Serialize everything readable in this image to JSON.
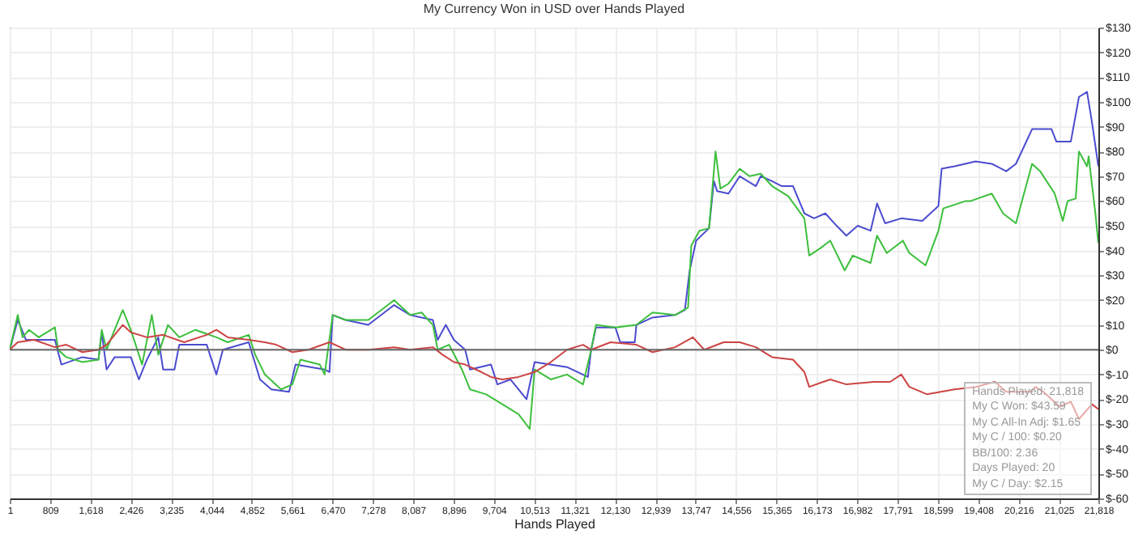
{
  "chart_data": {
    "type": "line",
    "title": "My Currency Won in USD over Hands Played",
    "xlabel": "Hands Played",
    "xlim": [
      1,
      21818
    ],
    "xticks": [
      1,
      {
        "value": 809,
        "label": "809"
      },
      {
        "value": 1618,
        "label": "1,618"
      },
      {
        "value": 2426,
        "label": "2,426"
      },
      {
        "value": 3235,
        "label": "3,235"
      },
      {
        "value": 4044,
        "label": "4,044"
      },
      {
        "value": 4852,
        "label": "4,852"
      },
      {
        "value": 5661,
        "label": "5,661"
      },
      {
        "value": 6470,
        "label": "6,470"
      },
      {
        "value": 7278,
        "label": "7,278"
      },
      {
        "value": 8087,
        "label": "8,087"
      },
      {
        "value": 8896,
        "label": "8,896"
      },
      {
        "value": 9704,
        "label": "9,704"
      },
      {
        "value": 10513,
        "label": "10,513"
      },
      {
        "value": 11321,
        "label": "11,321"
      },
      {
        "value": 12130,
        "label": "12,130"
      },
      {
        "value": 12939,
        "label": "12,939"
      },
      {
        "value": 13747,
        "label": "13,747"
      },
      {
        "value": 14556,
        "label": "14,556"
      },
      {
        "value": 15365,
        "label": "15,365"
      },
      {
        "value": 16173,
        "label": "16,173"
      },
      {
        "value": 16982,
        "label": "16,982"
      },
      {
        "value": 17791,
        "label": "17,791"
      },
      {
        "value": 18599,
        "label": "18,599"
      },
      {
        "value": 19408,
        "label": "19,408"
      },
      {
        "value": 20216,
        "label": "20,216"
      },
      {
        "value": 21025,
        "label": "21,025"
      },
      {
        "value": 21818,
        "label": "21,818"
      }
    ],
    "ylim": [
      -60,
      130
    ],
    "yticks": [
      {
        "value": -60,
        "label": "$-60"
      },
      {
        "value": -50,
        "label": "$-50"
      },
      {
        "value": -40,
        "label": "$-40"
      },
      {
        "value": -30,
        "label": "$-30"
      },
      {
        "value": -20,
        "label": "$-20"
      },
      {
        "value": -10,
        "label": "$-10"
      },
      {
        "value": 0,
        "label": "$0"
      },
      {
        "value": 10,
        "label": "$10"
      },
      {
        "value": 20,
        "label": "$20"
      },
      {
        "value": 30,
        "label": "$30"
      },
      {
        "value": 40,
        "label": "$40"
      },
      {
        "value": 50,
        "label": "$50"
      },
      {
        "value": 60,
        "label": "$60"
      },
      {
        "value": 70,
        "label": "$70"
      },
      {
        "value": 80,
        "label": "$80"
      },
      {
        "value": 90,
        "label": "$90"
      },
      {
        "value": 100,
        "label": "$100"
      },
      {
        "value": 110,
        "label": "$110"
      },
      {
        "value": 120,
        "label": "$120"
      },
      {
        "value": 130,
        "label": "$130"
      }
    ],
    "grid": true,
    "marker": "none",
    "line_style": "solid",
    "ref_lines": [
      {
        "axis": "y",
        "value": 0,
        "color": "#666666"
      }
    ],
    "annotations": [
      "Hands Played: 21,818",
      "My C Won: $43.59",
      "My C All-In Adj: $1.65",
      "My C / 100: $0.20",
      "BB/100: 2.36",
      "Days Played: 20",
      "My C / Day: $2.15"
    ],
    "series": [
      {
        "color": "#4b4bd0",
        "x": [
          1,
          162,
          324,
          906,
          1036,
          1457,
          1780,
          1845,
          1942,
          2104,
          2428,
          2590,
          2751,
          2978,
          3075,
          3302,
          3399,
          3949,
          4143,
          4273,
          4791,
          5017,
          5244,
          5600,
          5729,
          6312,
          6409,
          6474,
          6733,
          7186,
          7704,
          8028,
          8481,
          8578,
          8740,
          8902,
          9128,
          9225,
          9646,
          9775,
          10035,
          10358,
          10520,
          11168,
          11588,
          11653,
          11750,
          12139,
          12236,
          12527,
          12560,
          12883,
          13336,
          13531,
          13628,
          13757,
          14016,
          14113,
          14178,
          14405,
          14631,
          14955,
          15052,
          15279,
          15473,
          15699,
          15926,
          16120,
          16347,
          16573,
          16768,
          16994,
          17253,
          17383,
          17545,
          17868,
          18289,
          18613,
          18677,
          18936,
          19357,
          19681,
          19972,
          20166,
          20490,
          20879,
          20976,
          21267,
          21429,
          21591,
          21688,
          21818
        ],
        "values": [
          0,
          12,
          4,
          4,
          -6,
          -3,
          -4,
          7,
          -8,
          -3,
          -3,
          -12,
          -4,
          5,
          -8,
          -8,
          2,
          2,
          -10,
          0,
          3,
          -12,
          -16,
          -17,
          -6,
          -8,
          -9,
          14,
          12,
          10,
          18,
          14,
          12,
          4,
          10,
          4,
          0,
          -8,
          -6,
          -14,
          -12,
          -20,
          -5,
          -7,
          -11,
          0,
          9,
          9,
          3,
          3,
          10,
          13,
          14,
          16,
          32,
          44,
          49,
          68,
          64,
          63,
          70,
          66,
          70,
          68,
          66,
          66,
          55,
          53,
          55,
          50,
          46,
          50,
          48,
          59,
          51,
          53,
          52,
          58,
          73,
          74,
          76,
          75,
          72,
          75,
          89,
          89,
          84,
          84,
          102,
          104,
          92,
          74
        ]
      },
      {
        "color": "#3cbf3c",
        "x": [
          1,
          162,
          259,
          388,
          583,
          906,
          971,
          1133,
          1457,
          1780,
          1845,
          1942,
          2266,
          2428,
          2654,
          2849,
          2978,
          3172,
          3399,
          3723,
          4143,
          4370,
          4791,
          4920,
          5114,
          5438,
          5665,
          5827,
          6215,
          6312,
          6474,
          6733,
          7186,
          7704,
          8028,
          8254,
          8481,
          8578,
          8805,
          9064,
          9225,
          9549,
          9873,
          10197,
          10423,
          10520,
          10844,
          11168,
          11491,
          11653,
          11750,
          12139,
          12560,
          12883,
          13336,
          13595,
          13660,
          13822,
          14016,
          14146,
          14243,
          14405,
          14631,
          14826,
          15052,
          15279,
          15602,
          15926,
          16023,
          16250,
          16444,
          16735,
          16897,
          17253,
          17383,
          17577,
          17901,
          18030,
          18354,
          18613,
          18710,
          19163,
          19260,
          19681,
          19908,
          20166,
          20490,
          20652,
          20943,
          21105,
          21202,
          21364,
          21429,
          21591,
          21623,
          21753,
          21818
        ],
        "values": [
          0,
          14,
          5,
          8,
          5,
          9,
          0,
          -3,
          -5,
          -4,
          8,
          0,
          16,
          8,
          -6,
          14,
          -2,
          10,
          5,
          8,
          5,
          3,
          6,
          -2,
          -10,
          -16,
          -14,
          -4,
          -6,
          -10,
          14,
          12,
          12,
          20,
          14,
          15,
          10,
          0,
          2,
          -8,
          -16,
          -18,
          -22,
          -26,
          -32,
          -8,
          -12,
          -10,
          -14,
          0,
          10,
          9,
          10,
          15,
          14,
          17,
          42,
          48,
          49,
          80,
          65,
          67,
          73,
          70,
          71,
          66,
          62,
          53,
          38,
          41,
          44,
          32,
          38,
          35,
          46,
          39,
          44,
          39,
          34,
          48,
          57,
          60,
          60,
          63,
          55,
          51,
          75,
          72,
          63,
          52,
          60,
          61,
          80,
          74,
          78,
          56,
          43
        ]
      },
      {
        "color": "#cc4444",
        "x": [
          1,
          162,
          486,
          906,
          1133,
          1457,
          1780,
          1942,
          2266,
          2428,
          2751,
          3075,
          3496,
          3949,
          4143,
          4370,
          4791,
          5114,
          5341,
          5665,
          5988,
          6409,
          6733,
          7186,
          7704,
          8028,
          8481,
          8675,
          8902,
          9128,
          9452,
          9646,
          9873,
          10197,
          10520,
          10844,
          11168,
          11491,
          11653,
          12042,
          12560,
          12883,
          13336,
          13693,
          13919,
          14308,
          14631,
          14955,
          15279,
          15699,
          15926,
          16023,
          16444,
          16768,
          17318,
          17642,
          17868,
          18030,
          18386,
          18936,
          19357,
          19746,
          19972,
          20457,
          20555,
          20717,
          21041,
          21267,
          21429,
          21688,
          21818
        ],
        "values": [
          0,
          3,
          4,
          1,
          2,
          -1,
          0,
          2,
          10,
          7,
          5,
          6,
          3,
          6,
          8,
          5,
          4,
          3,
          2,
          -1,
          0,
          3,
          0,
          0,
          1,
          0,
          1,
          -2,
          -5,
          -6,
          -9,
          -11,
          -12,
          -11,
          -9,
          -5,
          0,
          2,
          0,
          3,
          2,
          -1,
          1,
          5,
          0,
          3,
          3,
          1,
          -3,
          -4,
          -9,
          -15,
          -12,
          -14,
          -13,
          -13,
          -10,
          -15,
          -18,
          -16,
          -15,
          -13,
          -17,
          -17,
          -15,
          -17,
          -23,
          -21,
          -28,
          -22,
          -24
        ]
      }
    ]
  }
}
